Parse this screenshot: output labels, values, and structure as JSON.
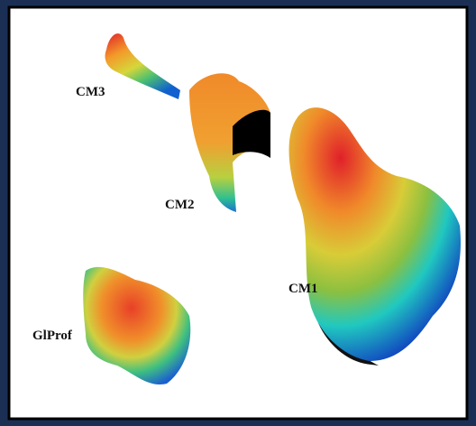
{
  "labels": [
    "CM3",
    "CM2",
    "CM1",
    "GlProf"
  ]
}
